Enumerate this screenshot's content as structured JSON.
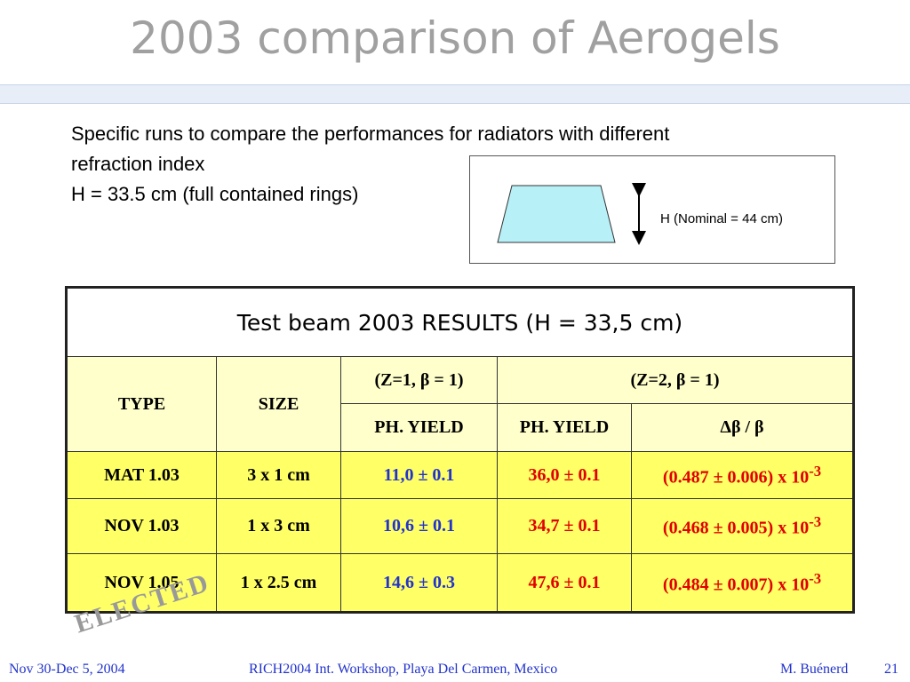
{
  "header": {
    "title": "2003 comparison of Aerogels"
  },
  "body": {
    "lines": [
      "Specific runs to compare the performances for radiators with different",
      "refraction index",
      "H = 33.5 cm (full contained rings)"
    ],
    "diagram_label": "H (Nominal = 44 cm)"
  },
  "table": {
    "caption": "Test beam 2003 RESULTS (H = 33,5 cm)",
    "header_top": [
      "TYPE",
      "SIZE",
      "(Z=1, β = 1)",
      "(Z=2, β = 1)"
    ],
    "header_sub": [
      "PH. YIELD",
      "PH. YIELD",
      "Δβ / β"
    ],
    "rows": [
      [
        {
          "text": "MAT 1.03"
        },
        {
          "text": "3 x 1 cm"
        },
        {
          "text": "11,0 ± 0.1"
        },
        {
          "text": "36,0 ± 0.1"
        },
        {
          "text": "(0.487 ± 0.006) x 10",
          "exponent": "-3"
        }
      ],
      [
        {
          "text": "NOV 1.03"
        },
        {
          "text": "1 x 3 cm"
        },
        {
          "text": "10,6 ± 0.1"
        },
        {
          "text": "34,7 ± 0.1"
        },
        {
          "text": "(0.468 ± 0.005) x 10",
          "exponent": "-3"
        }
      ],
      [
        {
          "text": "NOV 1.05"
        },
        {
          "text": "1 x 2.5 cm"
        },
        {
          "text": "14,6 ± 0.3"
        },
        {
          "text": "47,6 ± 0.1"
        },
        {
          "text": "(0.484 ± 0.007) x 10",
          "exponent": "-3"
        }
      ]
    ]
  },
  "stamp": "ELECTED",
  "footer": {
    "left": "Nov 30-Dec 5, 2004",
    "center": "RICH2004 Int. Workshop, Playa Del Carmen, Mexico",
    "author": "M. Buénerd",
    "page": "21"
  }
}
